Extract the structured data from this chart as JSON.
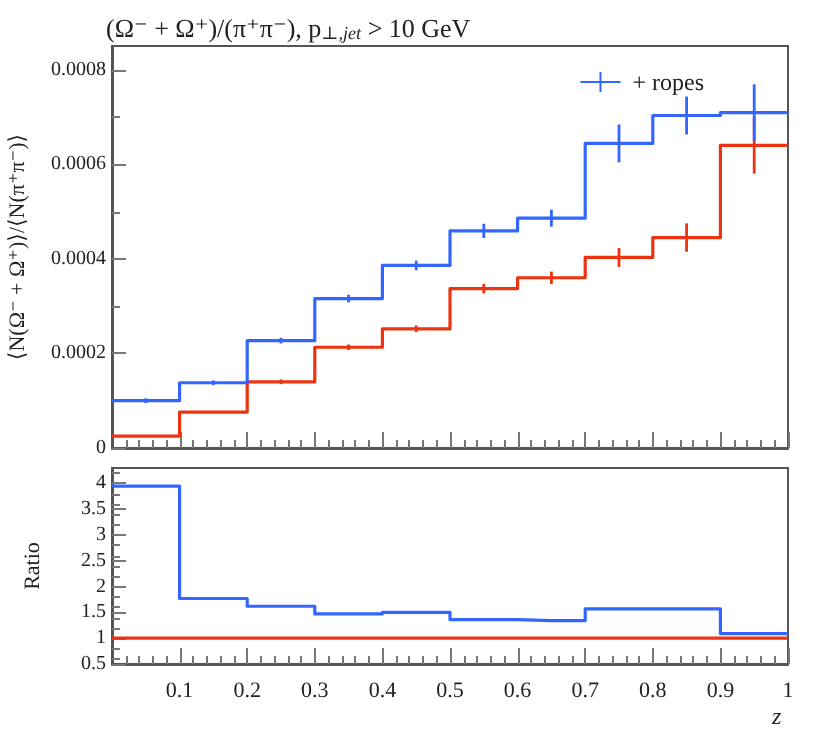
{
  "chart_data": [
    {
      "type": "step",
      "title": "(Ω⁻ + Ω⁺)/(π⁺π⁻), p$_{⊥,jet}$ > 10 GeV",
      "ylabel": "⟨N(Ω⁻ + Ω⁺)⟩/⟨N(π⁺π⁻)⟩",
      "x": [
        0,
        0.05,
        0.15,
        0.25,
        0.35,
        0.45,
        0.55,
        0.65,
        0.75,
        0.85,
        0.95,
        1
      ],
      "series": [
        {
          "color": "#ee3311",
          "values": [
            2.5e-05,
            2.5e-05,
            7.6e-05,
            0.00014,
            0.000213,
            0.000252,
            0.000337,
            0.00036,
            0.000403,
            0.000445,
            0.00064,
            0.00064
          ],
          "errors": [
            null,
            null,
            null,
            5e-06,
            6e-06,
            7e-06,
            1e-05,
            1.3e-05,
            2e-05,
            3e-05,
            6e-05,
            null
          ]
        },
        {
          "name": "+ ropes",
          "color": "#3366ff",
          "values": [
            0.0001,
            0.0001,
            0.000138,
            0.000227,
            0.000316,
            0.000386,
            0.000459,
            0.000486,
            0.000644,
            0.000703,
            0.000709,
            0.000709
          ],
          "errors": [
            null,
            5e-06,
            5e-06,
            6e-06,
            8e-06,
            1e-05,
            1.5e-05,
            1.8e-05,
            4e-05,
            4e-05,
            6e-05,
            null
          ]
        }
      ],
      "xlim": [
        0,
        1
      ],
      "xticks": [
        0.1,
        0.2,
        0.3,
        0.4,
        0.5,
        0.6,
        0.7,
        0.8,
        0.9,
        1
      ],
      "ylim": [
        0,
        0.00085
      ],
      "yticks": [
        0,
        0.0002,
        0.0004,
        0.0006,
        0.0008
      ],
      "tick_labels": "y",
      "legend": "top right",
      "grid": false
    },
    {
      "type": "step",
      "xlabel": "z",
      "ylabel": "Ratio",
      "x": [
        0,
        0.05,
        0.15,
        0.25,
        0.35,
        0.45,
        0.55,
        0.65,
        0.75,
        0.85,
        0.95,
        1
      ],
      "series": [
        {
          "color": "#ee3311",
          "values": [
            1,
            1,
            1,
            1,
            1,
            1,
            1,
            1,
            1,
            1,
            1,
            1
          ]
        },
        {
          "color": "#3366ff",
          "values": [
            3.95,
            3.95,
            1.77,
            1.62,
            1.47,
            1.5,
            1.36,
            1.34,
            1.57,
            1.57,
            1.09,
            1.09
          ]
        }
      ],
      "xlim": [
        0,
        1
      ],
      "xticks": [
        0.1,
        0.2,
        0.3,
        0.4,
        0.5,
        0.6,
        0.7,
        0.8,
        0.9,
        1
      ],
      "ylim": [
        0.5,
        4.3
      ],
      "yticks": [
        0.5,
        1,
        1.5,
        2,
        2.5,
        3,
        3.5,
        4
      ],
      "grid": false
    }
  ]
}
